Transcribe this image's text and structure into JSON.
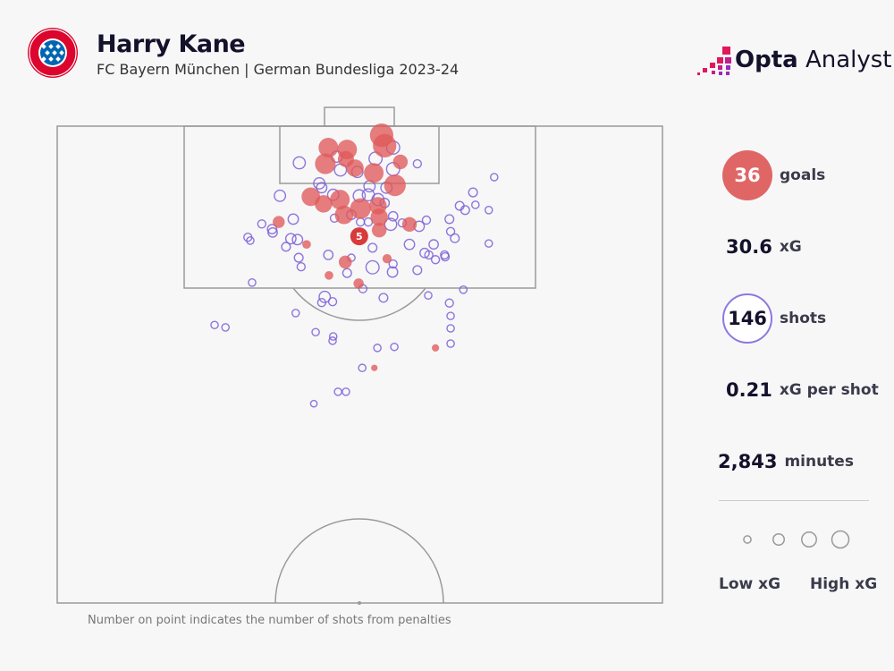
{
  "header": {
    "title": "Harry Kane",
    "subtitle": "FC Bayern München | German Bundesliga 2023-24",
    "crest_text": "FC BAYERN MÜNCHEN",
    "brand_bold": "Opta",
    "brand_light": "Analyst"
  },
  "stats": {
    "goals_value": "36",
    "goals_label": "goals",
    "xg_value": "30.6",
    "xg_label": "xG",
    "shots_value": "146",
    "shots_label": "shots",
    "xg_per_shot_value": "0.21",
    "xg_per_shot_label": "xG per shot",
    "minutes_value": "2,843",
    "minutes_label": "minutes"
  },
  "legend": {
    "low": "Low xG",
    "high": "High xG",
    "sample_xg": [
      0.03,
      0.1,
      0.2,
      0.35
    ]
  },
  "footnote": "Number on point indicates the number of shots from penalties",
  "colors": {
    "goal": "#e05a5a",
    "shot": "#7b5fd6",
    "pitch_line": "#9a9a9a",
    "background": "#f7f7f8",
    "text": "#14112b"
  },
  "chart_data": {
    "type": "scatter",
    "description_units": "Opta pitch coordinates: x 0-100 across the pitch width, y 0-100 distance from goal line over the half shown",
    "xlim": [
      0,
      100
    ],
    "ylim": [
      0,
      100
    ],
    "grid": false,
    "penalty": {
      "x": 49.9,
      "y": 23.1,
      "xg": 0.79,
      "label": "5",
      "outcome": "goal"
    },
    "goals": [
      [
        53.6,
        1.9,
        0.6
      ],
      [
        54.1,
        4.1,
        0.6
      ],
      [
        44.8,
        4.5,
        0.4
      ],
      [
        47.9,
        4.9,
        0.4
      ],
      [
        47.7,
        6.9,
        0.25
      ],
      [
        44.3,
        7.9,
        0.45
      ],
      [
        49.2,
        8.8,
        0.3
      ],
      [
        52.3,
        9.8,
        0.4
      ],
      [
        56.7,
        7.5,
        0.2
      ],
      [
        55.8,
        12.4,
        0.5
      ],
      [
        41.9,
        14.8,
        0.35
      ],
      [
        44.0,
        16.3,
        0.3
      ],
      [
        46.7,
        15.4,
        0.4
      ],
      [
        47.4,
        18.6,
        0.35
      ],
      [
        50.1,
        17.3,
        0.45
      ],
      [
        53.0,
        16.7,
        0.3
      ],
      [
        53.2,
        19.1,
        0.3
      ],
      [
        53.2,
        21.8,
        0.2
      ],
      [
        58.2,
        20.6,
        0.2
      ],
      [
        36.6,
        20.1,
        0.12
      ],
      [
        41.2,
        24.8,
        0.05
      ],
      [
        47.6,
        28.5,
        0.15
      ],
      [
        54.5,
        27.8,
        0.06
      ],
      [
        44.9,
        31.3,
        0.05
      ],
      [
        49.8,
        33.0,
        0.08
      ],
      [
        62.5,
        46.5,
        0.03
      ],
      [
        52.4,
        50.7,
        0.02
      ]
    ],
    "shots": [
      [
        40.0,
        7.7,
        0.12
      ],
      [
        46.2,
        6.4,
        0.1
      ],
      [
        52.6,
        6.8,
        0.15
      ],
      [
        55.5,
        4.5,
        0.15
      ],
      [
        55.5,
        9.0,
        0.15
      ],
      [
        59.5,
        7.9,
        0.04
      ],
      [
        46.8,
        9.2,
        0.12
      ],
      [
        49.6,
        9.6,
        0.1
      ],
      [
        43.3,
        12.0,
        0.1
      ],
      [
        43.7,
        12.9,
        0.08
      ],
      [
        51.6,
        12.6,
        0.1
      ],
      [
        54.4,
        12.9,
        0.1
      ],
      [
        72.2,
        10.7,
        0.03
      ],
      [
        36.8,
        14.6,
        0.1
      ],
      [
        45.6,
        14.4,
        0.1
      ],
      [
        49.9,
        14.6,
        0.12
      ],
      [
        51.4,
        14.4,
        0.12
      ],
      [
        53.0,
        15.4,
        0.12
      ],
      [
        54.1,
        16.1,
        0.06
      ],
      [
        68.7,
        13.9,
        0.05
      ],
      [
        66.5,
        16.7,
        0.05
      ],
      [
        67.4,
        17.6,
        0.05
      ],
      [
        69.1,
        16.5,
        0.03
      ],
      [
        71.3,
        17.6,
        0.03
      ],
      [
        33.8,
        20.5,
        0.04
      ],
      [
        35.5,
        21.6,
        0.06
      ],
      [
        35.6,
        22.3,
        0.06
      ],
      [
        39.0,
        19.5,
        0.08
      ],
      [
        45.8,
        19.3,
        0.04
      ],
      [
        48.6,
        18.6,
        0.06
      ],
      [
        55.5,
        18.9,
        0.06
      ],
      [
        55.1,
        20.6,
        0.12
      ],
      [
        51.4,
        20.1,
        0.04
      ],
      [
        50.1,
        20.1,
        0.04
      ],
      [
        57.0,
        20.3,
        0.04
      ],
      [
        59.8,
        21.0,
        0.08
      ],
      [
        61.0,
        19.7,
        0.04
      ],
      [
        64.8,
        19.5,
        0.05
      ],
      [
        31.5,
        23.3,
        0.04
      ],
      [
        31.9,
        24.0,
        0.03
      ],
      [
        38.6,
        23.6,
        0.08
      ],
      [
        39.7,
        23.8,
        0.08
      ],
      [
        37.8,
        25.3,
        0.05
      ],
      [
        52.1,
        25.5,
        0.05
      ],
      [
        58.2,
        24.8,
        0.08
      ],
      [
        62.2,
        24.8,
        0.06
      ],
      [
        60.7,
        26.6,
        0.06
      ],
      [
        61.4,
        27.0,
        0.04
      ],
      [
        62.5,
        28.0,
        0.04
      ],
      [
        64.0,
        27.0,
        0.04
      ],
      [
        64.1,
        27.4,
        0.04
      ],
      [
        65.0,
        22.1,
        0.04
      ],
      [
        65.7,
        23.5,
        0.05
      ],
      [
        71.3,
        24.6,
        0.03
      ],
      [
        44.8,
        27.0,
        0.06
      ],
      [
        39.9,
        27.6,
        0.05
      ],
      [
        40.3,
        29.5,
        0.04
      ],
      [
        48.6,
        27.6,
        0.03
      ],
      [
        52.1,
        29.6,
        0.15
      ],
      [
        55.5,
        28.9,
        0.04
      ],
      [
        55.4,
        30.6,
        0.08
      ],
      [
        59.5,
        30.2,
        0.05
      ],
      [
        47.9,
        30.8,
        0.05
      ],
      [
        32.2,
        32.8,
        0.03
      ],
      [
        44.2,
        35.8,
        0.1
      ],
      [
        43.7,
        37.0,
        0.04
      ],
      [
        45.5,
        36.8,
        0.04
      ],
      [
        50.5,
        34.1,
        0.04
      ],
      [
        53.9,
        36.0,
        0.05
      ],
      [
        61.3,
        35.5,
        0.03
      ],
      [
        64.8,
        37.1,
        0.04
      ],
      [
        67.1,
        34.3,
        0.03
      ],
      [
        39.4,
        39.2,
        0.03
      ],
      [
        26.0,
        41.7,
        0.03
      ],
      [
        27.8,
        42.2,
        0.03
      ],
      [
        42.7,
        43.2,
        0.03
      ],
      [
        45.6,
        44.1,
        0.03
      ],
      [
        45.5,
        45.0,
        0.03
      ],
      [
        65.0,
        39.8,
        0.03
      ],
      [
        65.0,
        42.4,
        0.03
      ],
      [
        65.0,
        45.6,
        0.03
      ],
      [
        52.9,
        46.5,
        0.03
      ],
      [
        55.7,
        46.3,
        0.03
      ],
      [
        50.4,
        50.7,
        0.03
      ],
      [
        46.4,
        55.7,
        0.03
      ],
      [
        47.7,
        55.7,
        0.03
      ],
      [
        42.4,
        58.2,
        0.02
      ]
    ]
  }
}
